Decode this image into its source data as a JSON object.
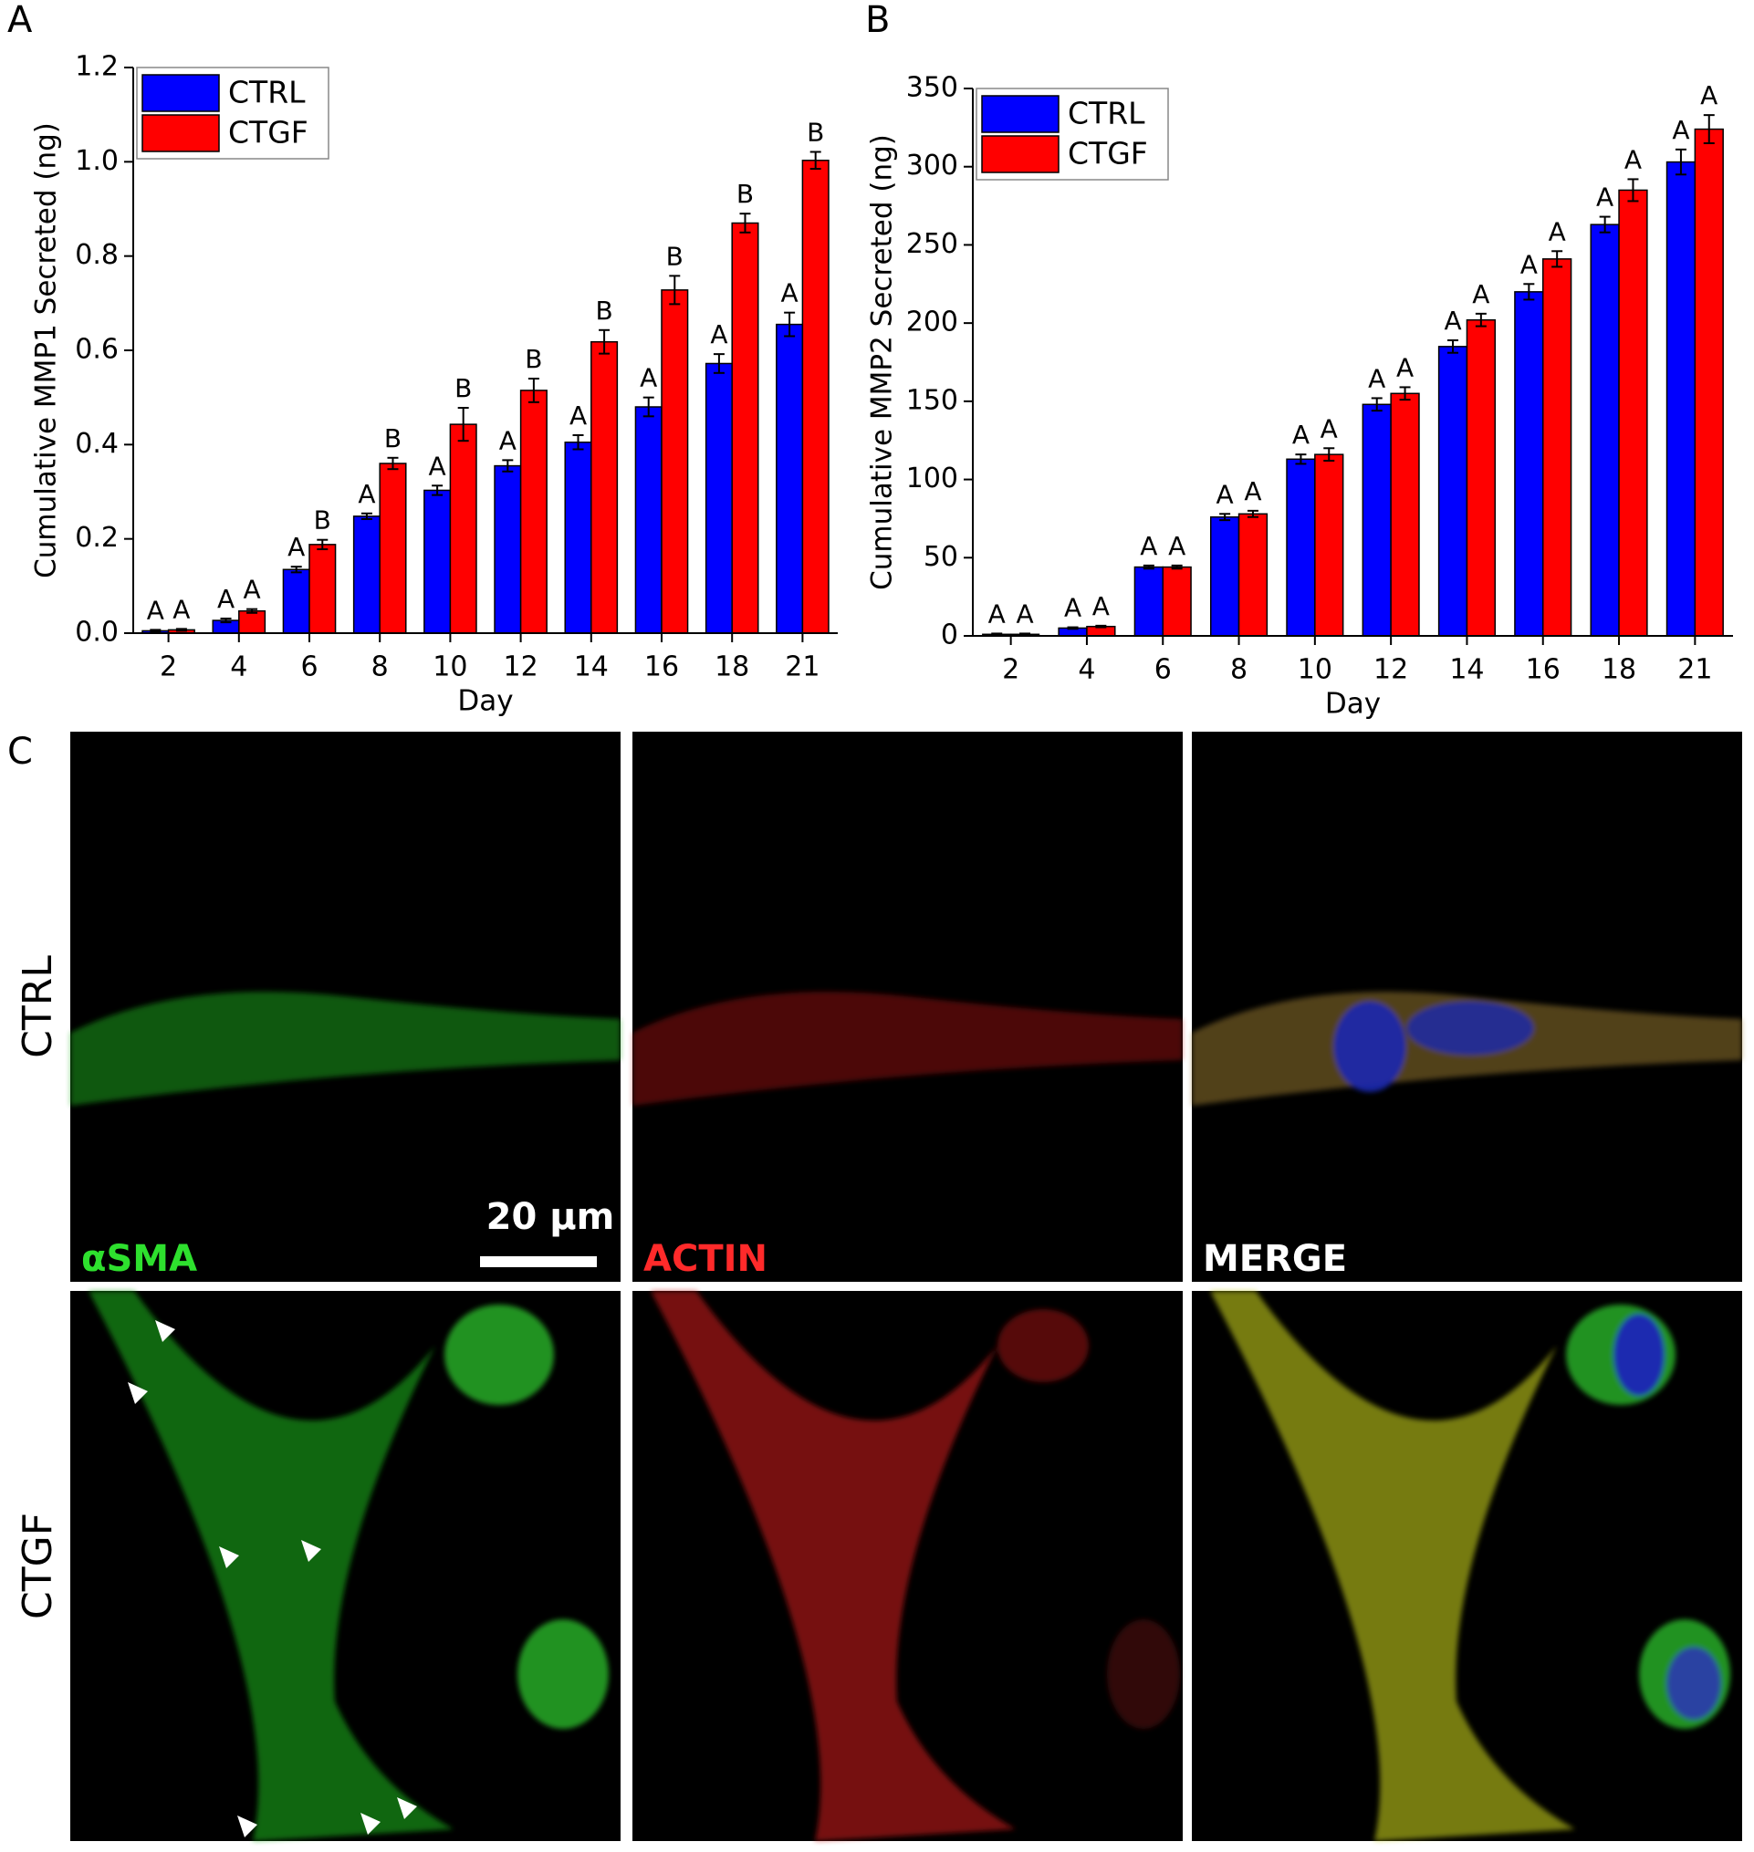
{
  "panel_labels": [
    "A",
    "B",
    "C"
  ],
  "chart_data": [
    {
      "type": "bar",
      "xlabel": "Day",
      "ylabel": "Cumulative MMP1 Secreted (ng)",
      "categories": [
        "2",
        "4",
        "6",
        "8",
        "10",
        "12",
        "14",
        "16",
        "18",
        "21"
      ],
      "series": [
        {
          "name": "CTRL",
          "color": "#0000ff",
          "values": [
            0.005,
            0.027,
            0.135,
            0.248,
            0.303,
            0.355,
            0.405,
            0.48,
            0.572,
            0.655
          ],
          "errors": [
            0.002,
            0.004,
            0.006,
            0.006,
            0.01,
            0.012,
            0.015,
            0.02,
            0.02,
            0.025
          ],
          "letters": [
            "A",
            "A",
            "A",
            "A",
            "A",
            "A",
            "A",
            "A",
            "A",
            "A"
          ]
        },
        {
          "name": "CTGF",
          "color": "#ff0000",
          "values": [
            0.007,
            0.047,
            0.188,
            0.36,
            0.443,
            0.515,
            0.618,
            0.728,
            0.87,
            1.003
          ],
          "errors": [
            0.002,
            0.004,
            0.01,
            0.012,
            0.035,
            0.025,
            0.025,
            0.03,
            0.02,
            0.018
          ],
          "letters": [
            "A",
            "A",
            "B",
            "B",
            "B",
            "B",
            "B",
            "B",
            "B",
            "B"
          ]
        }
      ],
      "ylim": [
        0,
        1.2
      ],
      "yticks": [
        {
          "value": 0,
          "label": "0.0"
        },
        0.2,
        0.4,
        0.6,
        0.8,
        {
          "value": 1,
          "label": "1.0"
        },
        1.2
      ],
      "legend": "top-left"
    },
    {
      "type": "bar",
      "xlabel": "Day",
      "ylabel": "Cumulative MMP2 Secreted (ng)",
      "categories": [
        "2",
        "4",
        "6",
        "8",
        "10",
        "12",
        "14",
        "16",
        "18",
        "21"
      ],
      "series": [
        {
          "name": "CTRL",
          "color": "#0000ff",
          "values": [
            1,
            5,
            44,
            76,
            113,
            148,
            185,
            220,
            263,
            303
          ],
          "errors": [
            0.5,
            0.5,
            1,
            2,
            3,
            4,
            4,
            5,
            5,
            8
          ],
          "letters": [
            "A",
            "A",
            "A",
            "A",
            "A",
            "A",
            "A",
            "A",
            "A",
            "A"
          ]
        },
        {
          "name": "CTGF",
          "color": "#ff0000",
          "values": [
            1,
            6,
            44,
            78,
            116,
            155,
            202,
            241,
            285,
            324
          ],
          "errors": [
            0.5,
            0.5,
            1,
            2,
            4,
            4,
            4,
            5,
            7,
            9
          ],
          "letters": [
            "A",
            "A",
            "A",
            "A",
            "A",
            "A",
            "A",
            "A",
            "A",
            "A"
          ]
        }
      ],
      "ylim": [
        0,
        350
      ],
      "yticks": [
        0,
        50,
        100,
        150,
        200,
        250,
        300,
        350
      ],
      "legend": "top-left"
    }
  ],
  "micrographs": {
    "rows": [
      "CTRL",
      "CTGF"
    ],
    "channels": [
      "αSMA",
      "ACTIN",
      "MERGE"
    ],
    "scale_bar": "20 µm"
  }
}
